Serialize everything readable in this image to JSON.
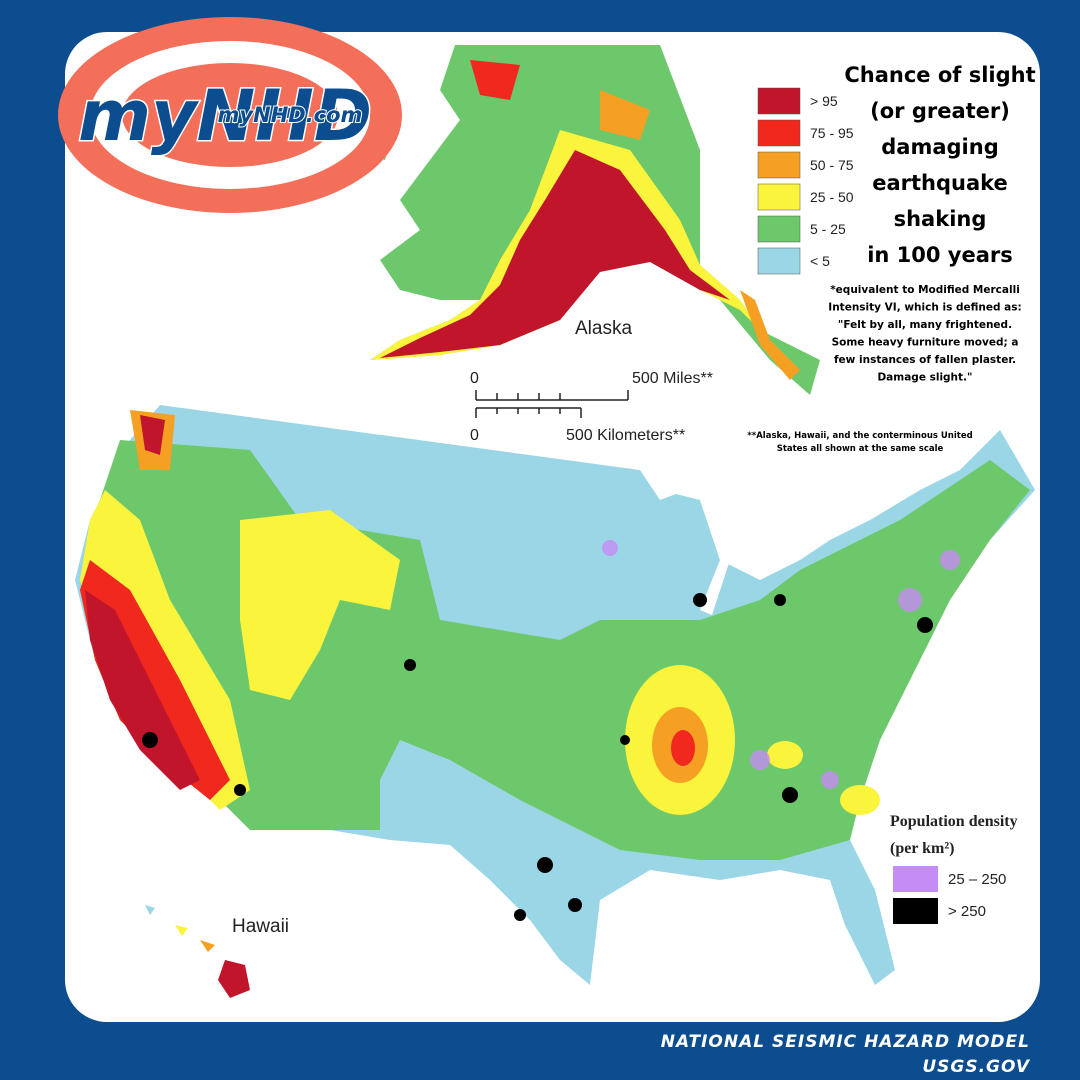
{
  "logo": {
    "brand": "myNHD",
    "url": "myNHD.com"
  },
  "legend": {
    "title_lines": [
      "Chance of slight",
      "(or greater)",
      "damaging",
      "earthquake",
      "shaking",
      "in 100 years"
    ],
    "entries": [
      {
        "label": "> 95",
        "color": "#c0152a"
      },
      {
        "label": "75 - 95",
        "color": "#f0281e"
      },
      {
        "label": "50 - 75",
        "color": "#f5a023"
      },
      {
        "label": "25 - 50",
        "color": "#fbf43c"
      },
      {
        "label": "5 - 25",
        "color": "#6cc86a"
      },
      {
        "label": "< 5",
        "color": "#9bd6e6"
      }
    ],
    "note_lines": [
      "*equivalent to Modified Mercalli",
      "Intensity VI, which is defined as:",
      "\"Felt by all, many frightened.",
      "Some heavy furniture moved; a",
      "few instances of fallen plaster.",
      "Damage slight.\""
    ]
  },
  "map": {
    "alaska_label": "Alaska",
    "hawaii_label": "Hawaii",
    "scale": {
      "miles_zero": "0",
      "miles_label": "500 Miles**",
      "km_zero": "0",
      "km_label": "500 Kilometers**"
    },
    "scale_note_lines": [
      "**Alaska, Hawaii, and the conterminous United",
      "States all shown at the same scale"
    ]
  },
  "population_legend": {
    "title": "Population density",
    "unit": "(per km²)",
    "entries": [
      {
        "label": "25 – 250",
        "color": "#c58cf5"
      },
      {
        "label": "> 250",
        "color": "#000000"
      }
    ]
  },
  "footer": {
    "line1": "NATIONAL SEISMIC HAZARD MODEL",
    "line2": "USGS.GOV"
  }
}
